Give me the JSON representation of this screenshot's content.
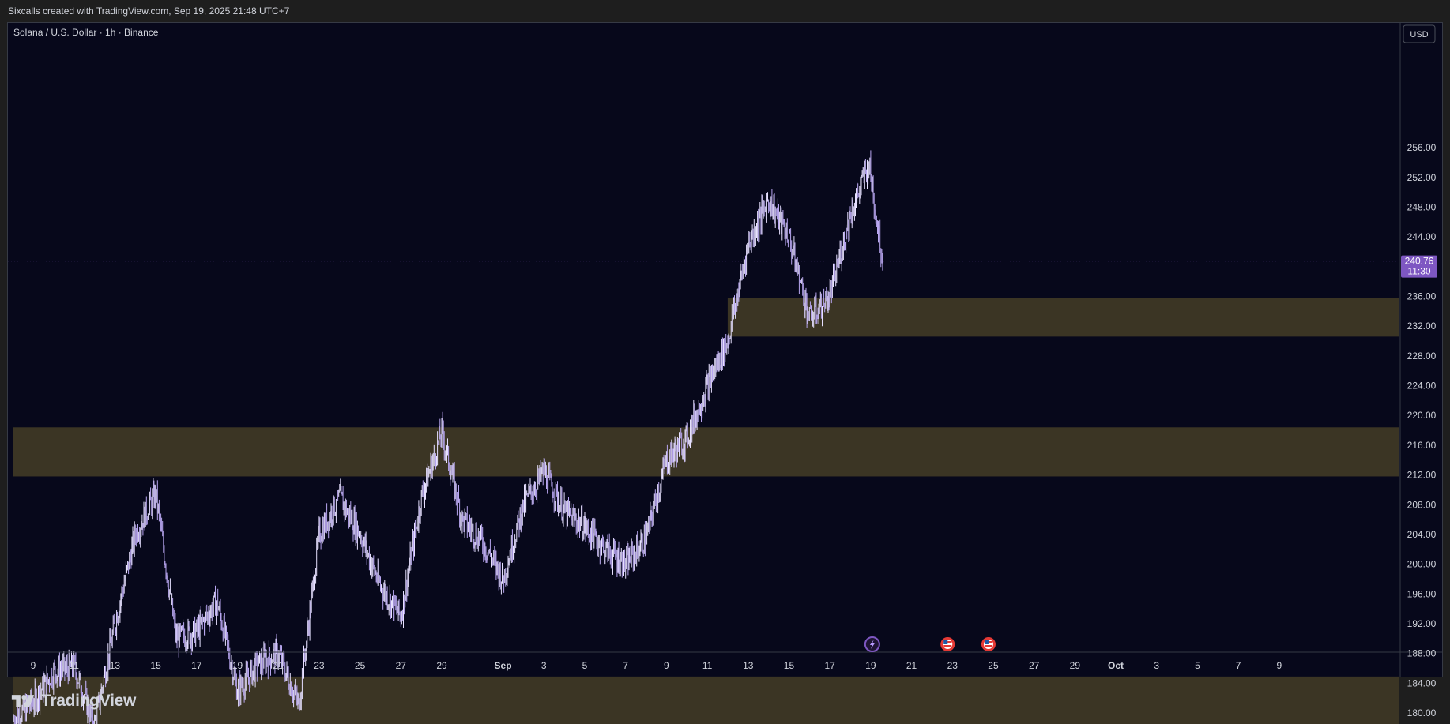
{
  "header": {
    "caption": "Sixcalls created with TradingView.com, Sep 19, 2025 21:48 UTC+7"
  },
  "brand": {
    "name": "TradingView"
  },
  "chart_data": {
    "type": "candlestick",
    "title": "Solana / U.S. Dollar · 1h · Binance",
    "currency": "USD",
    "last_price": {
      "value": "240.76",
      "countdown": "11:30",
      "color": "#7e57c2"
    },
    "ylim": [
      177.5,
      259.5
    ],
    "y_ticks": [
      "256.00",
      "252.00",
      "248.00",
      "244.00",
      "240.00",
      "236.00",
      "232.00",
      "228.00",
      "224.00",
      "220.00",
      "216.00",
      "212.00",
      "208.00",
      "204.00",
      "200.00",
      "196.00",
      "192.00",
      "188.00",
      "184.00",
      "180.00"
    ],
    "x_ticks": [
      "9",
      "11",
      "13",
      "15",
      "17",
      "19",
      "21",
      "23",
      "25",
      "27",
      "29",
      "Sep",
      "3",
      "5",
      "7",
      "9",
      "11",
      "13",
      "15",
      "17",
      "19",
      "21",
      "23",
      "25",
      "27",
      "29",
      "Oct",
      "3",
      "5",
      "7",
      "9"
    ],
    "x_dates": [
      "2025-08-09",
      "2025-08-11",
      "2025-08-13",
      "2025-08-15",
      "2025-08-17",
      "2025-08-19",
      "2025-08-21",
      "2025-08-23",
      "2025-08-25",
      "2025-08-27",
      "2025-08-29",
      "2025-09-01",
      "2025-09-03",
      "2025-09-05",
      "2025-09-07",
      "2025-09-09",
      "2025-09-11",
      "2025-09-13",
      "2025-09-15",
      "2025-09-17",
      "2025-09-19",
      "2025-09-21",
      "2025-09-23",
      "2025-09-25",
      "2025-09-27",
      "2025-09-29",
      "2025-10-01",
      "2025-10-03",
      "2025-10-05",
      "2025-10-07",
      "2025-10-09"
    ],
    "zones": [
      {
        "low": 230.6,
        "high": 235.8,
        "start": "2025-09-12",
        "color": "#3b3524"
      },
      {
        "low": 211.8,
        "high": 218.4,
        "start": "2025-08-08",
        "color": "#3b3524"
      },
      {
        "low": 178.4,
        "high": 184.9,
        "start": "2025-08-08",
        "color": "#3b3524"
      }
    ],
    "candle_color": "#b8a6f0",
    "price_path": [
      [
        "2025-08-08",
        179.0
      ],
      [
        "2025-08-09",
        181.5
      ],
      [
        "2025-08-10",
        185.5
      ],
      [
        "2025-08-11",
        186.2
      ],
      [
        "2025-08-12",
        178.3
      ],
      [
        "2025-08-13",
        192.0
      ],
      [
        "2025-08-14",
        204.0
      ],
      [
        "2025-08-15",
        209.5
      ],
      [
        "2025-08-16",
        190.0
      ],
      [
        "2025-08-17",
        191.0
      ],
      [
        "2025-08-18",
        195.0
      ],
      [
        "2025-08-19",
        183.0
      ],
      [
        "2025-08-20",
        186.5
      ],
      [
        "2025-08-21",
        188.0
      ],
      [
        "2025-08-22",
        181.0
      ],
      [
        "2025-08-23",
        204.0
      ],
      [
        "2025-08-24",
        209.0
      ],
      [
        "2025-08-25",
        204.0
      ],
      [
        "2025-08-26",
        197.0
      ],
      [
        "2025-08-27",
        193.0
      ],
      [
        "2025-08-28",
        209.0
      ],
      [
        "2025-08-29",
        217.8
      ],
      [
        "2025-08-30",
        206.0
      ],
      [
        "2025-08-31",
        203.0
      ],
      [
        "2025-09-01",
        198.0
      ],
      [
        "2025-09-02",
        208.0
      ],
      [
        "2025-09-03",
        212.5
      ],
      [
        "2025-09-04",
        207.0
      ],
      [
        "2025-09-05",
        205.0
      ],
      [
        "2025-09-06",
        202.0
      ],
      [
        "2025-09-07",
        200.0
      ],
      [
        "2025-09-08",
        203.5
      ],
      [
        "2025-09-09",
        214.0
      ],
      [
        "2025-09-10",
        217.0
      ],
      [
        "2025-09-11",
        224.0
      ],
      [
        "2025-09-12",
        230.0
      ],
      [
        "2025-09-13",
        243.0
      ],
      [
        "2025-09-14",
        249.0
      ],
      [
        "2025-09-15",
        244.0
      ],
      [
        "2025-09-16",
        233.0
      ],
      [
        "2025-09-17",
        236.0
      ],
      [
        "2025-09-18",
        247.0
      ],
      [
        "2025-09-18T22:00",
        253.8
      ],
      [
        "2025-09-19T14:00",
        240.76
      ]
    ],
    "event_markers": [
      {
        "date": "2025-09-19",
        "icon": "lightning-icon",
        "color": "#7e57c2"
      },
      {
        "date": "2025-09-23",
        "icon": "us-flag-icon",
        "color": "#e53935"
      },
      {
        "date": "2025-09-25",
        "icon": "us-flag-icon",
        "color": "#e53935"
      }
    ]
  }
}
